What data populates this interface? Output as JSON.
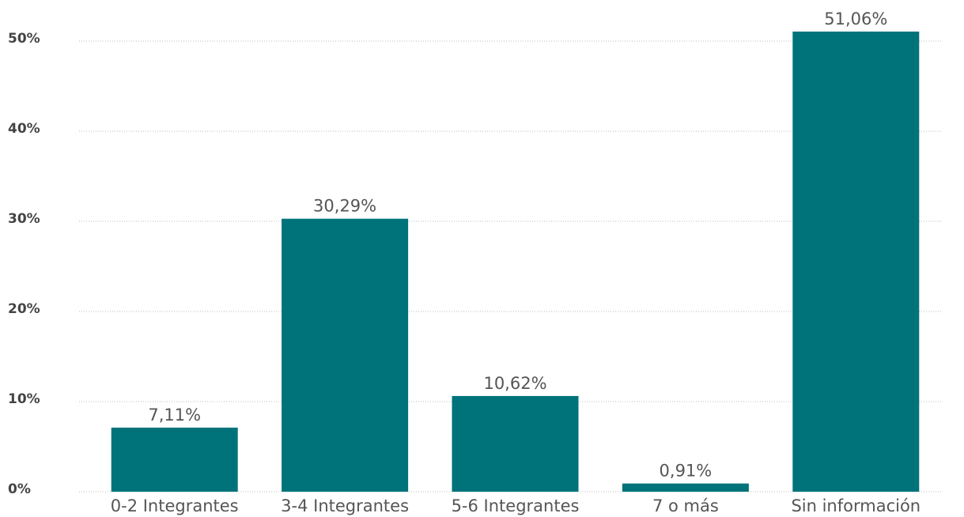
{
  "chart_data": {
    "type": "bar",
    "categories": [
      "0-2 Integrantes",
      "3-4 Integrantes",
      "5-6 Integrantes",
      "7 o más",
      "Sin información"
    ],
    "values": [
      7.11,
      30.29,
      10.62,
      0.91,
      51.06
    ],
    "value_labels": [
      "7,11%",
      "30,29%",
      "10,62%",
      "0,91%",
      "51,06%"
    ],
    "color": "#00737a",
    "ylim": [
      0,
      52
    ],
    "yticks": [
      {
        "value": 0,
        "label": "0%"
      },
      {
        "value": 10,
        "label": "10%"
      },
      {
        "value": 20,
        "label": "20%"
      },
      {
        "value": 30,
        "label": "30%"
      },
      {
        "value": 40,
        "label": "40%"
      },
      {
        "value": 50,
        "label": "50%"
      }
    ],
    "grid": true
  }
}
